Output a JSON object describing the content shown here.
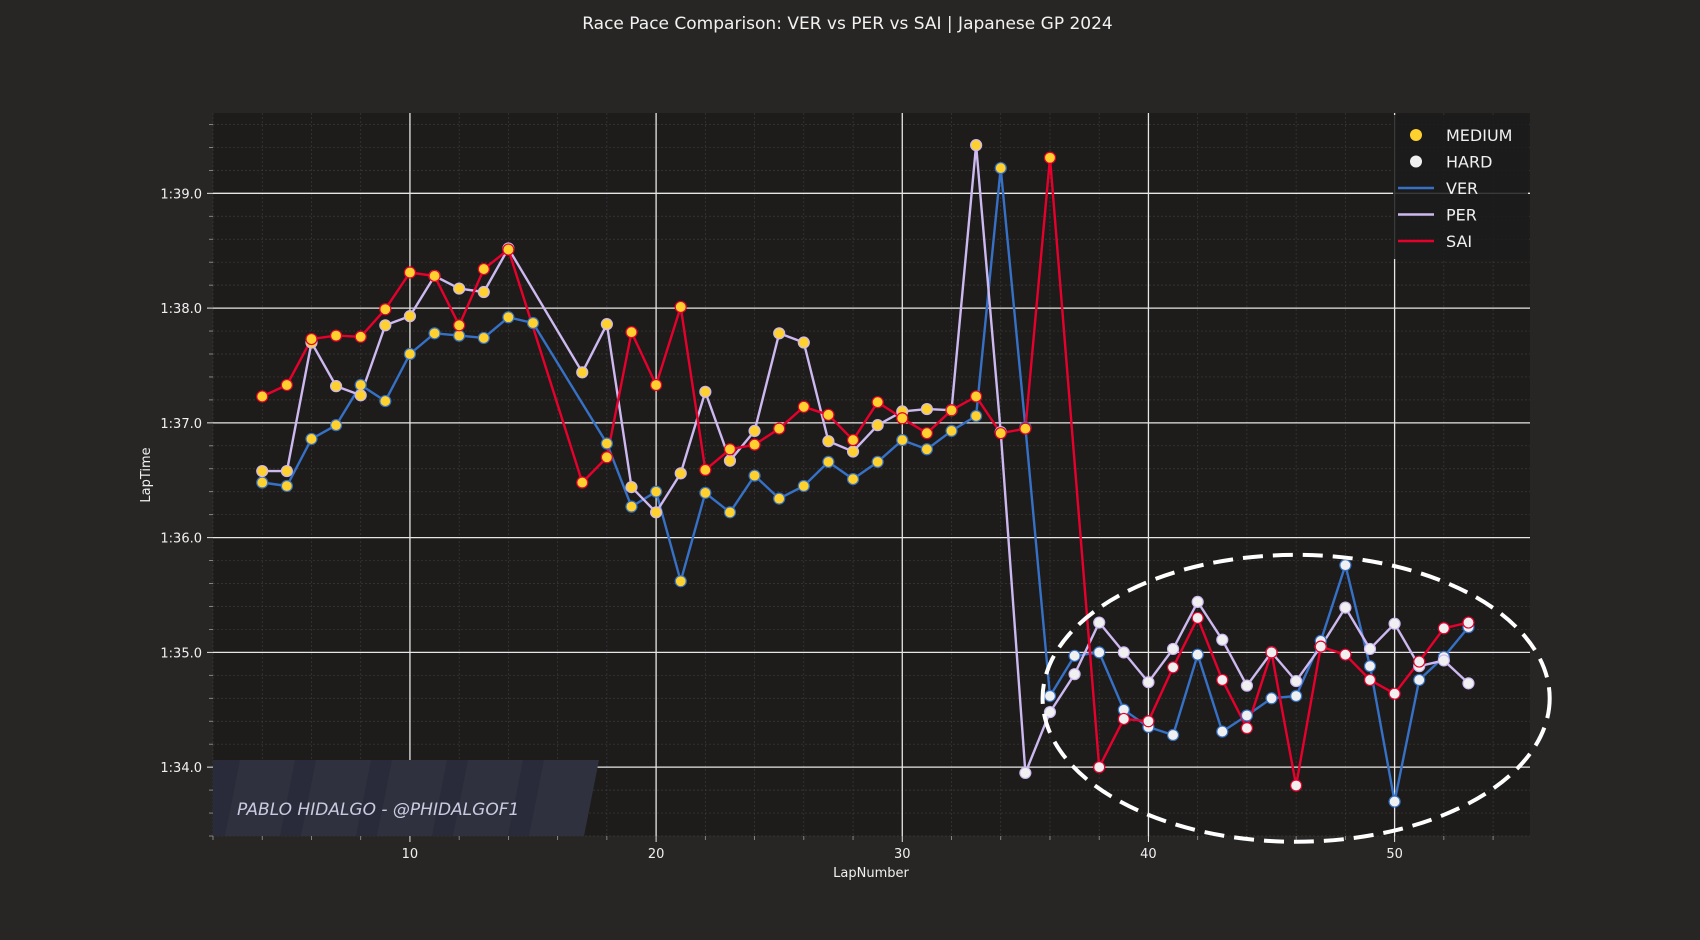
{
  "chart_data": {
    "type": "line",
    "title": "Race Pace Comparison: VER vs PER vs SAI | Japanese GP 2024",
    "xlabel": "LapNumber",
    "ylabel": "LapTime",
    "xlim": [
      2,
      55.5
    ],
    "ylim": [
      93.4,
      99.7
    ],
    "x_ticks": [
      10,
      20,
      30,
      40,
      50
    ],
    "y_ticks": [
      {
        "value": 94,
        "label": "1:34.0"
      },
      {
        "value": 95,
        "label": "1:35.0"
      },
      {
        "value": 96,
        "label": "1:36.0"
      },
      {
        "value": 97,
        "label": "1:37.0"
      },
      {
        "value": 98,
        "label": "1:38.0"
      },
      {
        "value": 99,
        "label": "1:39.0"
      }
    ],
    "grid": true,
    "legend_position": "top-right",
    "legend": [
      {
        "label": "MEDIUM",
        "kind": "marker",
        "color": "#ffd12e"
      },
      {
        "label": "HARD",
        "kind": "marker",
        "color": "#f0f0f0"
      },
      {
        "label": "VER",
        "kind": "line",
        "color": "#3671c6"
      },
      {
        "label": "PER",
        "kind": "line",
        "color": "#cdb9f0"
      },
      {
        "label": "SAI",
        "kind": "line",
        "color": "#e8002d"
      }
    ],
    "compound_colors": {
      "MEDIUM": "#ffd12e",
      "HARD": "#f0f0f0"
    },
    "medium_until_lap": {
      "VER": 35,
      "PER": 34,
      "SAI": 37
    },
    "series": [
      {
        "name": "VER",
        "color": "#3671c6",
        "x": [
          4,
          5,
          6,
          7,
          8,
          9,
          10,
          11,
          12,
          13,
          14,
          15,
          18,
          19,
          20,
          21,
          22,
          23,
          24,
          25,
          26,
          27,
          28,
          29,
          30,
          31,
          32,
          33,
          34,
          35,
          36,
          37,
          38,
          39,
          40,
          41,
          42,
          43,
          44,
          45,
          46,
          47,
          48,
          49,
          50,
          51,
          52,
          53
        ],
        "y": [
          96.48,
          96.45,
          96.86,
          96.98,
          97.33,
          97.19,
          97.6,
          97.78,
          97.76,
          97.74,
          97.92,
          97.87,
          96.82,
          96.27,
          96.4,
          95.62,
          96.39,
          96.22,
          96.54,
          96.34,
          96.45,
          96.66,
          96.51,
          96.66,
          96.85,
          96.77,
          96.93,
          97.06,
          99.22,
          96.96,
          94.62,
          94.97,
          95.0,
          94.5,
          94.35,
          94.28,
          94.98,
          94.31,
          94.45,
          94.6,
          94.62,
          95.1,
          95.76,
          94.88,
          93.7,
          94.76,
          94.96,
          95.22
        ]
      },
      {
        "name": "PER",
        "color": "#cdb9f0",
        "x": [
          4,
          5,
          6,
          7,
          8,
          9,
          10,
          11,
          12,
          13,
          14,
          17,
          18,
          19,
          20,
          21,
          22,
          23,
          24,
          25,
          26,
          27,
          28,
          29,
          30,
          31,
          32,
          33,
          34,
          35,
          36,
          37,
          38,
          39,
          40,
          41,
          42,
          43,
          44,
          45,
          46,
          47,
          48,
          49,
          50,
          51,
          52,
          53
        ],
        "y": [
          96.58,
          96.58,
          97.7,
          97.32,
          97.24,
          97.85,
          97.93,
          98.28,
          98.17,
          98.14,
          98.52,
          97.44,
          97.86,
          96.44,
          96.22,
          96.56,
          97.27,
          96.67,
          96.93,
          97.78,
          97.7,
          96.84,
          96.75,
          96.98,
          97.1,
          97.12,
          97.11,
          99.42,
          96.92,
          93.95,
          94.48,
          94.81,
          95.26,
          95.0,
          94.74,
          95.03,
          95.44,
          95.11,
          94.71,
          95.0,
          94.75,
          95.05,
          95.39,
          95.03,
          95.25,
          94.88,
          94.93,
          94.73
        ]
      },
      {
        "name": "SAI",
        "color": "#e8002d",
        "x": [
          4,
          5,
          6,
          7,
          8,
          9,
          10,
          11,
          12,
          13,
          14,
          17,
          18,
          19,
          20,
          21,
          22,
          23,
          24,
          25,
          26,
          27,
          28,
          29,
          30,
          31,
          32,
          33,
          34,
          35,
          36,
          38,
          39,
          40,
          41,
          42,
          43,
          44,
          45,
          46,
          47,
          48,
          49,
          50,
          51,
          52,
          53
        ],
        "y": [
          97.23,
          97.33,
          97.73,
          97.76,
          97.75,
          97.99,
          98.31,
          98.28,
          97.85,
          98.34,
          98.51,
          96.48,
          96.7,
          97.79,
          97.33,
          98.01,
          96.59,
          96.77,
          96.81,
          96.95,
          97.14,
          97.07,
          96.85,
          97.18,
          97.04,
          96.91,
          97.11,
          97.23,
          96.91,
          96.95,
          99.31,
          94.0,
          94.42,
          94.4,
          94.87,
          95.3,
          94.76,
          94.34,
          95.0,
          93.84,
          95.05,
          94.98,
          94.76,
          94.64,
          94.92,
          95.21,
          95.26
        ]
      }
    ],
    "annotation": {
      "shape": "dashed-ellipse",
      "cx": 46,
      "cy": 94.6,
      "rx": 10.3,
      "ry": 1.25
    },
    "watermark": "PABLO HIDALGO - @PHIDALGOF1"
  }
}
